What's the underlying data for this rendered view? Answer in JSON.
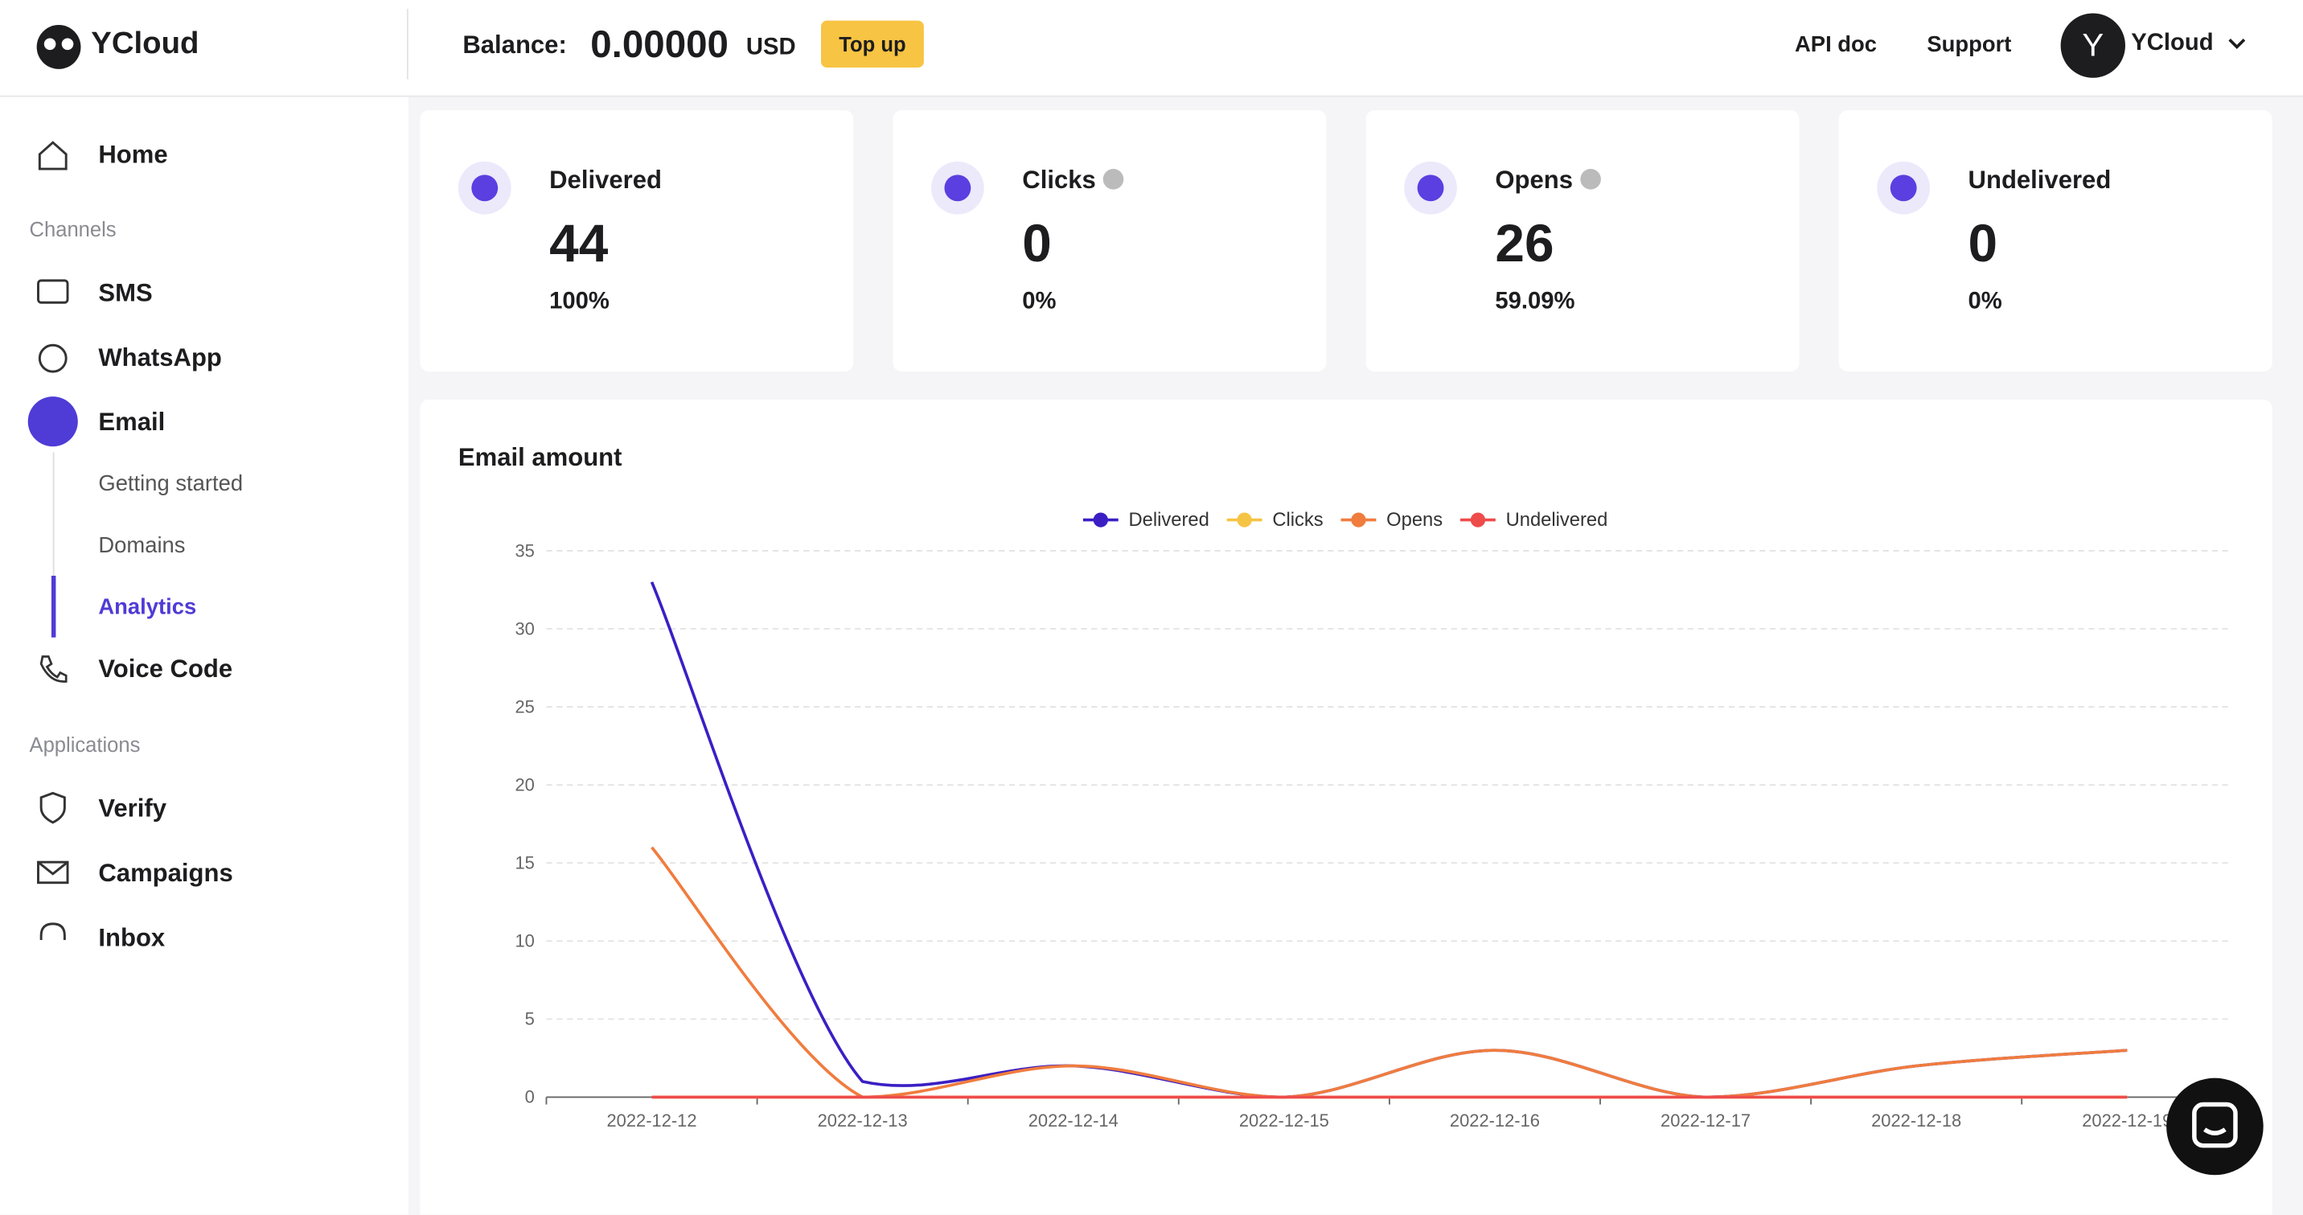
{
  "header": {
    "logo": "YCloud",
    "balance_label": "Balance:",
    "balance_value": "0.00000",
    "currency": "USD",
    "top_up": "Top up",
    "api_doc": "API doc",
    "support": "Support",
    "avatar": "Y",
    "user": "YCloud"
  },
  "sidebar": {
    "home": "Home",
    "channels_heading": "Channels",
    "sms": "SMS",
    "whatsapp": "WhatsApp",
    "email": "Email",
    "getting_started": "Getting started",
    "domains": "Domains",
    "analytics": "Analytics",
    "voice_code": "Voice Code",
    "applications_heading": "Applications",
    "verify": "Verify",
    "campaigns": "Campaigns",
    "inbox": "Inbox"
  },
  "stats": [
    {
      "label": "Delivered",
      "value": "44",
      "rate": "100%"
    },
    {
      "label": "Clicks",
      "value": "0",
      "rate": "0%"
    },
    {
      "label": "Opens",
      "value": "26",
      "rate": "59.09%"
    },
    {
      "label": "Undelivered",
      "value": "0",
      "rate": "0%"
    }
  ],
  "chart_data": {
    "type": "line",
    "title": "Email amount",
    "smooth": true,
    "categories": [
      "2022-12-12",
      "2022-12-13",
      "2022-12-14",
      "2022-12-15",
      "2022-12-16",
      "2022-12-17",
      "2022-12-18",
      "2022-12-19"
    ],
    "series": [
      {
        "name": "Delivered",
        "color": "#3b1fc4",
        "values": [
          33,
          1,
          2,
          0,
          3,
          0,
          2,
          3
        ]
      },
      {
        "name": "Clicks",
        "color": "#f6c445",
        "values": [
          0,
          0,
          0,
          0,
          0,
          0,
          0,
          0
        ]
      },
      {
        "name": "Opens",
        "color": "#f07c3e",
        "values": [
          16,
          0,
          2,
          0,
          3,
          0,
          2,
          3
        ]
      },
      {
        "name": "Undelivered",
        "color": "#ee4b4b",
        "values": [
          0,
          0,
          0,
          0,
          0,
          0,
          0,
          0
        ]
      }
    ],
    "ylim": [
      0,
      35
    ],
    "yticks": [
      0,
      5,
      10,
      15,
      20,
      25,
      30,
      35
    ],
    "grid": true,
    "legend": "top"
  }
}
